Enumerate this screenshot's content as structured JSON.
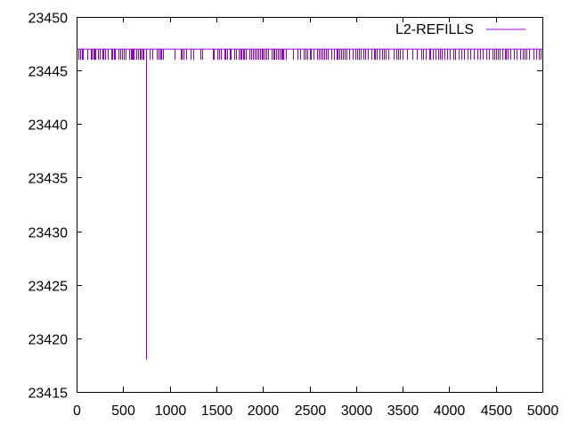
{
  "chart_data": {
    "type": "line",
    "title": "",
    "xlabel": "",
    "ylabel": "",
    "xlim": [
      0,
      5000
    ],
    "ylim": [
      23415,
      23450
    ],
    "xticks": [
      0,
      500,
      1000,
      1500,
      2000,
      2500,
      3000,
      3500,
      4000,
      4500,
      5000
    ],
    "yticks": [
      23415,
      23420,
      23425,
      23430,
      23435,
      23440,
      23445,
      23450
    ],
    "grid": false,
    "legend_position": "top-right",
    "series": [
      {
        "name": "L2-REFILLS",
        "color": "#9400d3",
        "baseline": 23447,
        "dip_value": 23446,
        "dips_x": [
          20,
          40,
          55,
          70,
          110,
          150,
          165,
          180,
          195,
          205,
          230,
          245,
          275,
          290,
          305,
          330,
          370,
          385,
          400,
          415,
          445,
          470,
          490,
          505,
          530,
          560,
          580,
          595,
          605,
          615,
          640,
          660,
          675,
          690,
          710,
          720,
          780,
          810,
          860,
          880,
          900,
          905,
          930,
          1050,
          1120,
          1130,
          1150,
          1175,
          1220,
          1250,
          1330,
          1345,
          1460,
          1475,
          1510,
          1530,
          1545,
          1590,
          1600,
          1615,
          1640,
          1655,
          1690,
          1710,
          1740,
          1755,
          1770,
          1785,
          1800,
          1820,
          1850,
          1870,
          1890,
          1910,
          1930,
          1950,
          1970,
          1985,
          2000,
          2020,
          2040,
          2060,
          2090,
          2110,
          2125,
          2140,
          2160,
          2180,
          2200,
          2210,
          2220,
          2250,
          2320,
          2370,
          2400,
          2440,
          2460,
          2480,
          2500,
          2510,
          2540,
          2580,
          2600,
          2620,
          2640,
          2660,
          2680,
          2700,
          2730,
          2760,
          2790,
          2800,
          2820,
          2840,
          2860,
          2880,
          2900,
          2930,
          2960,
          2990,
          3010,
          3030,
          3050,
          3080,
          3100,
          3130,
          3160,
          3190,
          3200,
          3220,
          3250,
          3280,
          3300,
          3320,
          3350,
          3400,
          3430,
          3450,
          3470,
          3500,
          3550,
          3600,
          3650,
          3700,
          3720,
          3750,
          3790,
          3800,
          3820,
          3850,
          3880,
          3900,
          3920,
          3950,
          3980,
          4010,
          4040,
          4060,
          4100,
          4130,
          4160,
          4200,
          4230,
          4260,
          4300,
          4330,
          4360,
          4400,
          4430,
          4460,
          4480,
          4500,
          4520,
          4540,
          4570,
          4600,
          4610,
          4630,
          4660,
          4690,
          4720,
          4760,
          4790,
          4810,
          4830,
          4860,
          4900,
          4930,
          4960,
          4980
        ],
        "outlier": {
          "x": 745,
          "y": 23418
        }
      }
    ]
  }
}
